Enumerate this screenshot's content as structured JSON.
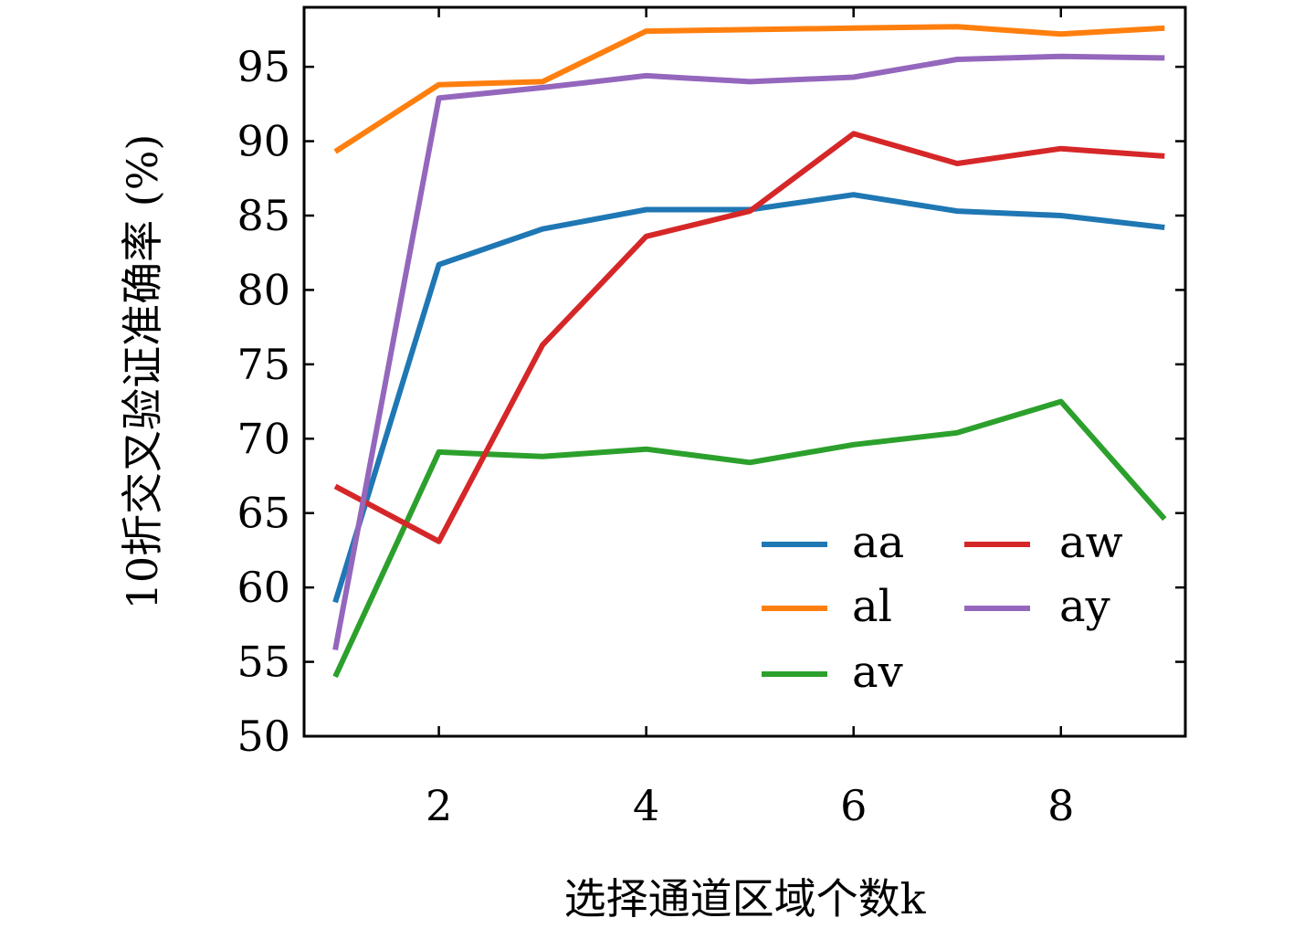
{
  "chart_data": {
    "type": "line",
    "xlabel": "选择通道区域个数k",
    "ylabel": "10折交叉验证准确率 (%)",
    "xlim": [
      0.7,
      9.2
    ],
    "ylim": [
      50,
      99
    ],
    "xticks": [
      2,
      4,
      6,
      8
    ],
    "yticks": [
      50,
      55,
      60,
      65,
      70,
      75,
      80,
      85,
      90,
      95
    ],
    "grid": false,
    "legend": {
      "position": "lower-right",
      "columns": 2
    },
    "x": [
      1,
      2,
      3,
      4,
      5,
      6,
      7,
      8,
      9
    ],
    "series": [
      {
        "name": "aa",
        "color": "#1f77b4",
        "values": [
          59.0,
          81.7,
          84.1,
          85.4,
          85.4,
          86.4,
          85.3,
          85.0,
          84.2
        ]
      },
      {
        "name": "al",
        "color": "#ff7f0e",
        "values": [
          89.3,
          93.8,
          94.0,
          97.4,
          97.5,
          97.6,
          97.7,
          97.2,
          97.6
        ]
      },
      {
        "name": "av",
        "color": "#2ca02c",
        "values": [
          54.0,
          69.1,
          68.8,
          69.3,
          68.4,
          69.6,
          70.4,
          72.5,
          64.6
        ]
      },
      {
        "name": "aw",
        "color": "#d62728",
        "values": [
          66.8,
          63.1,
          76.3,
          83.6,
          85.3,
          90.5,
          88.5,
          89.5,
          89.0
        ]
      },
      {
        "name": "ay",
        "color": "#9467bd",
        "values": [
          55.8,
          92.9,
          93.6,
          94.4,
          94.0,
          94.3,
          95.5,
          95.7,
          95.6
        ]
      }
    ]
  }
}
